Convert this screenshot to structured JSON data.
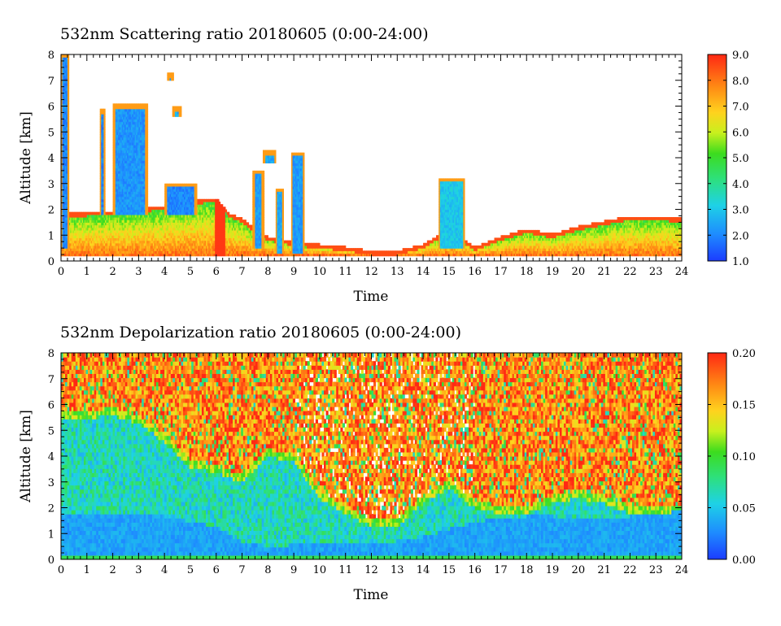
{
  "chart_data": [
    {
      "type": "heatmap",
      "title": "532nm Scattering ratio  20180605 (0:00-24:00)",
      "xlabel": "Time",
      "ylabel": "Altitude [km]",
      "xlim": [
        0,
        24
      ],
      "ylim": [
        0,
        8
      ],
      "x_ticks": [
        "0",
        "1",
        "2",
        "3",
        "4",
        "5",
        "6",
        "7",
        "8",
        "9",
        "10",
        "11",
        "12",
        "13",
        "14",
        "15",
        "16",
        "17",
        "18",
        "19",
        "20",
        "21",
        "22",
        "23",
        "24"
      ],
      "y_ticks": [
        "0",
        "1",
        "2",
        "3",
        "4",
        "5",
        "6",
        "7",
        "8"
      ],
      "colorbar": {
        "range": [
          1.0,
          9.0
        ],
        "ticks": [
          "1.0",
          "2.0",
          "3.0",
          "4.0",
          "5.0",
          "6.0",
          "7.0",
          "8.0",
          "9.0"
        ]
      },
      "features": {
        "boundary_layer_top_km": [
          [
            0,
            1.8
          ],
          [
            1,
            1.85
          ],
          [
            2,
            1.9
          ],
          [
            3,
            2.0
          ],
          [
            4,
            2.1
          ],
          [
            5,
            2.3
          ],
          [
            6,
            2.4
          ],
          [
            6.5,
            1.8
          ],
          [
            7,
            1.6
          ],
          [
            7.5,
            1.2
          ],
          [
            8,
            0.9
          ],
          [
            9,
            0.7
          ],
          [
            10,
            0.6
          ],
          [
            11,
            0.5
          ],
          [
            12,
            0.35
          ],
          [
            13,
            0.35
          ],
          [
            14,
            0.6
          ],
          [
            15,
            1.2
          ],
          [
            16,
            0.5
          ],
          [
            17,
            0.9
          ],
          [
            18,
            1.2
          ],
          [
            19,
            1.0
          ],
          [
            20,
            1.3
          ],
          [
            21,
            1.5
          ],
          [
            22,
            1.7
          ],
          [
            23,
            1.7
          ],
          [
            24,
            1.6
          ]
        ],
        "cloud_layers": [
          {
            "t_start": 0.0,
            "t_end": 0.3,
            "base_km": 0.5,
            "top_km": 8.0,
            "value": 2.0
          },
          {
            "t_start": 1.5,
            "t_end": 1.7,
            "base_km": 1.8,
            "top_km": 5.8,
            "value": 2.0
          },
          {
            "t_start": 2.0,
            "t_end": 3.3,
            "base_km": 1.8,
            "top_km": 6.0,
            "value": 2.2
          },
          {
            "t_start": 4.1,
            "t_end": 4.3,
            "base_km": 7.0,
            "top_km": 7.2,
            "value": 2.5
          },
          {
            "t_start": 4.3,
            "t_end": 4.6,
            "base_km": 5.6,
            "top_km": 5.9,
            "value": 2.5
          },
          {
            "t_start": 4.0,
            "t_end": 5.2,
            "base_km": 1.8,
            "top_km": 3.0,
            "value": 2.0
          },
          {
            "t_start": 7.4,
            "t_end": 7.8,
            "base_km": 0.5,
            "top_km": 3.5,
            "value": 2.3
          },
          {
            "t_start": 7.8,
            "t_end": 8.3,
            "base_km": 3.8,
            "top_km": 4.2,
            "value": 2.5
          },
          {
            "t_start": 8.3,
            "t_end": 8.6,
            "base_km": 0.3,
            "top_km": 2.8,
            "value": 2.5
          },
          {
            "t_start": 8.9,
            "t_end": 9.4,
            "base_km": 0.3,
            "top_km": 4.2,
            "value": 2.3
          },
          {
            "t_start": 14.6,
            "t_end": 15.6,
            "base_km": 0.5,
            "top_km": 3.2,
            "value": 3.0
          }
        ]
      }
    },
    {
      "type": "heatmap",
      "title": "532nm Depolarization ratio  20180605 (0:00-24:00)",
      "xlabel": "Time",
      "ylabel": "Altitude [km]",
      "xlim": [
        0,
        24
      ],
      "ylim": [
        0,
        8
      ],
      "x_ticks": [
        "0",
        "1",
        "2",
        "3",
        "4",
        "5",
        "6",
        "7",
        "8",
        "9",
        "10",
        "11",
        "12",
        "13",
        "14",
        "15",
        "16",
        "17",
        "18",
        "19",
        "20",
        "21",
        "22",
        "23",
        "24"
      ],
      "y_ticks": [
        "0",
        "1",
        "2",
        "3",
        "4",
        "5",
        "6",
        "7",
        "8"
      ],
      "colorbar": {
        "range": [
          0.0,
          0.2
        ],
        "ticks": [
          "0.00",
          "0.05",
          "0.10",
          "0.15",
          "0.20"
        ]
      },
      "features": {
        "noise_floor_km": [
          [
            0,
            5.6
          ],
          [
            2,
            5.8
          ],
          [
            3,
            5.5
          ],
          [
            4,
            4.8
          ],
          [
            5,
            3.8
          ],
          [
            6,
            3.6
          ],
          [
            7,
            3.2
          ],
          [
            8,
            4.2
          ],
          [
            9,
            4.0
          ],
          [
            10,
            2.6
          ],
          [
            11,
            2.0
          ],
          [
            12,
            1.5
          ],
          [
            13,
            1.5
          ],
          [
            14,
            2.4
          ],
          [
            15,
            3.0
          ],
          [
            16,
            2.2
          ],
          [
            17,
            2.0
          ],
          [
            18,
            2.0
          ],
          [
            19,
            2.4
          ],
          [
            20,
            2.6
          ],
          [
            21,
            2.4
          ],
          [
            22,
            2.0
          ],
          [
            23,
            2.0
          ],
          [
            24,
            2.0
          ]
        ],
        "low_depol_layer_top_km": [
          [
            0,
            1.7
          ],
          [
            3,
            1.7
          ],
          [
            4,
            1.6
          ],
          [
            5,
            1.4
          ],
          [
            6,
            1.2
          ],
          [
            7,
            0.6
          ],
          [
            8,
            0.4
          ],
          [
            10,
            0.6
          ],
          [
            12,
            0.5
          ],
          [
            14,
            0.8
          ],
          [
            16,
            1.4
          ],
          [
            17,
            1.5
          ],
          [
            18,
            1.6
          ],
          [
            19,
            1.6
          ],
          [
            20,
            1.5
          ],
          [
            21,
            1.5
          ],
          [
            22,
            1.6
          ],
          [
            23,
            1.7
          ],
          [
            24,
            1.8
          ]
        ],
        "surface_layer_value": 0.09
      }
    }
  ]
}
